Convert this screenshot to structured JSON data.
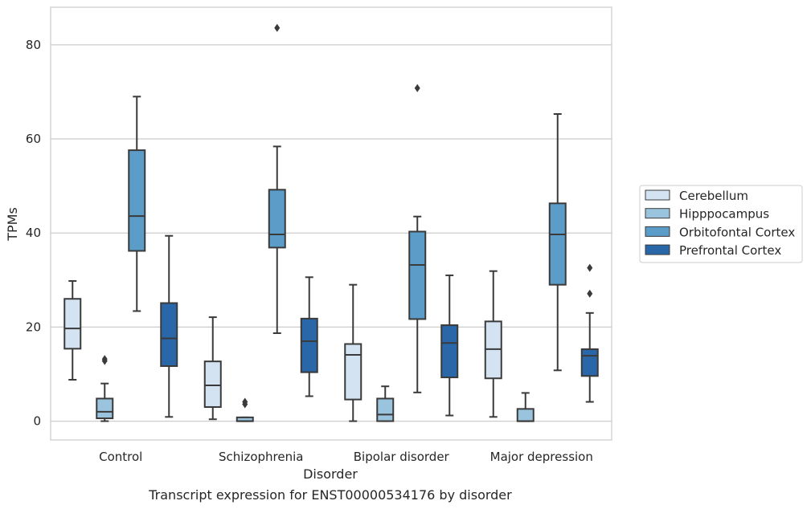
{
  "chart_data": {
    "type": "box",
    "caption": "Transcript expression for ENST00000534176 by disorder",
    "xlabel": "Disorder",
    "ylabel": "TPMs",
    "ylim": [
      -4,
      88
    ],
    "yticks": [
      0,
      20,
      40,
      60,
      80
    ],
    "grid": true,
    "legend_position": "right",
    "categories": [
      "Control",
      "Schizophrenia",
      "Bipolar disorder",
      "Major depression"
    ],
    "series": [
      {
        "name": "Cerebellum",
        "color": "#d3e3f2",
        "boxes": [
          {
            "whisker_low": 8.8,
            "q1": 15.4,
            "median": 19.7,
            "q3": 26.0,
            "whisker_high": 29.8,
            "outliers": []
          },
          {
            "whisker_low": 0.4,
            "q1": 3.0,
            "median": 7.6,
            "q3": 12.7,
            "whisker_high": 22.1,
            "outliers": []
          },
          {
            "whisker_low": 0.0,
            "q1": 4.6,
            "median": 14.1,
            "q3": 16.4,
            "whisker_high": 29.0,
            "outliers": []
          },
          {
            "whisker_low": 0.9,
            "q1": 9.1,
            "median": 15.3,
            "q3": 21.2,
            "whisker_high": 31.9,
            "outliers": []
          }
        ]
      },
      {
        "name": "Hipppocampus",
        "color": "#9ac3de",
        "boxes": [
          {
            "whisker_low": 0.0,
            "q1": 0.6,
            "median": 2.0,
            "q3": 4.8,
            "whisker_high": 8.0,
            "outliers": [
              12.8,
              13.2
            ]
          },
          {
            "whisker_low": 0.0,
            "q1": 0.0,
            "median": 0.0,
            "q3": 0.8,
            "whisker_high": 0.8,
            "outliers": [
              3.6,
              4.1
            ]
          },
          {
            "whisker_low": 0.0,
            "q1": 0.0,
            "median": 1.4,
            "q3": 4.8,
            "whisker_high": 7.4,
            "outliers": []
          },
          {
            "whisker_low": 0.0,
            "q1": 0.0,
            "median": 0.0,
            "q3": 2.6,
            "whisker_high": 6.0,
            "outliers": []
          }
        ]
      },
      {
        "name": "Orbitofontal Cortex",
        "color": "#5b9cc8",
        "boxes": [
          {
            "whisker_low": 23.4,
            "q1": 36.2,
            "median": 43.6,
            "q3": 57.6,
            "whisker_high": 69.0,
            "outliers": []
          },
          {
            "whisker_low": 18.7,
            "q1": 36.9,
            "median": 39.7,
            "q3": 49.2,
            "whisker_high": 58.4,
            "outliers": [
              83.6
            ]
          },
          {
            "whisker_low": 6.1,
            "q1": 21.7,
            "median": 33.2,
            "q3": 40.3,
            "whisker_high": 43.5,
            "outliers": [
              70.8
            ]
          },
          {
            "whisker_low": 10.8,
            "q1": 29.0,
            "median": 39.7,
            "q3": 46.3,
            "whisker_high": 65.3,
            "outliers": []
          }
        ]
      },
      {
        "name": "Prefrontal Cortex",
        "color": "#2a67a8",
        "boxes": [
          {
            "whisker_low": 0.9,
            "q1": 11.7,
            "median": 17.6,
            "q3": 25.1,
            "whisker_high": 39.4,
            "outliers": []
          },
          {
            "whisker_low": 5.3,
            "q1": 10.4,
            "median": 17.0,
            "q3": 21.8,
            "whisker_high": 30.6,
            "outliers": []
          },
          {
            "whisker_low": 1.2,
            "q1": 9.3,
            "median": 16.6,
            "q3": 20.4,
            "whisker_high": 31.0,
            "outliers": []
          },
          {
            "whisker_low": 4.1,
            "q1": 9.6,
            "median": 13.9,
            "q3": 15.3,
            "whisker_high": 23.0,
            "outliers": [
              27.1,
              32.6
            ]
          }
        ]
      }
    ]
  }
}
